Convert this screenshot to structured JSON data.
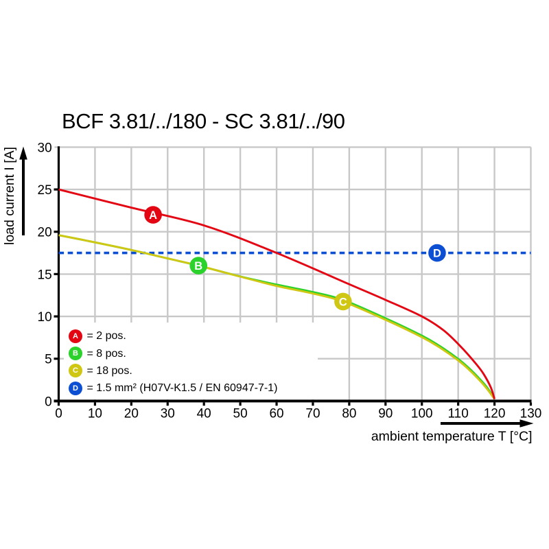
{
  "chart_data": {
    "type": "line",
    "title": "BCF 3.81/../180 - SC 3.81/../90",
    "xlabel": "ambient temperature T [°C]",
    "ylabel": "load current I [A]",
    "xlim": [
      0,
      130
    ],
    "ylim": [
      0,
      30
    ],
    "x_ticks": [
      0,
      10,
      20,
      30,
      40,
      50,
      60,
      70,
      80,
      90,
      100,
      110,
      120,
      130
    ],
    "y_ticks": [
      0,
      5,
      10,
      15,
      20,
      25,
      30
    ],
    "grid": true,
    "legend_position": "lower-left",
    "colors": {
      "axis": "#000000",
      "grid": "#c8c8c8",
      "text": "#000000",
      "background": "#ffffff",
      "series_a_red": "#e30613",
      "series_b_green": "#2bd22b",
      "series_c_yellow": "#cfc713",
      "series_d_blue": "#0d4fd2"
    },
    "series": [
      {
        "id": "D",
        "legend_label": "= 1.5 mm² (H07V-K1.5 / EN 60947-7-1)",
        "color": "#0d4fd2",
        "style": "dashed",
        "marker": {
          "letter": "D",
          "x": 104.2,
          "y": 17.5
        },
        "points": [
          [
            0,
            17.5
          ],
          [
            130,
            17.5
          ]
        ]
      },
      {
        "id": "B",
        "legend_label": "= 8 pos.",
        "color": "#2bd22b",
        "style": "solid",
        "marker": {
          "letter": "B",
          "x": 38.5,
          "y": 16
        },
        "points": [
          [
            0,
            19.6
          ],
          [
            10,
            18.75
          ],
          [
            20,
            17.85
          ],
          [
            30,
            16.85
          ],
          [
            38.5,
            16.0
          ],
          [
            50,
            14.72
          ],
          [
            60,
            13.76
          ],
          [
            70,
            12.88
          ],
          [
            78.3,
            11.95
          ],
          [
            90,
            9.78
          ],
          [
            100,
            7.73
          ],
          [
            105,
            6.48
          ],
          [
            110,
            4.98
          ],
          [
            113,
            3.88
          ],
          [
            116,
            2.58
          ],
          [
            118,
            1.58
          ],
          [
            120,
            0
          ]
        ]
      },
      {
        "id": "C",
        "legend_label": "= 18 pos.",
        "color": "#cfc713",
        "style": "solid",
        "marker": {
          "letter": "C",
          "x": 78.3,
          "y": 11.75
        },
        "points": [
          [
            0,
            19.6
          ],
          [
            10,
            18.75
          ],
          [
            20,
            17.85
          ],
          [
            30,
            16.85
          ],
          [
            38.5,
            16.0
          ],
          [
            50,
            14.7
          ],
          [
            60,
            13.6
          ],
          [
            70,
            12.7
          ],
          [
            78.3,
            11.75
          ],
          [
            90,
            9.6
          ],
          [
            100,
            7.55
          ],
          [
            105,
            6.3
          ],
          [
            110,
            4.8
          ],
          [
            113,
            3.7
          ],
          [
            116,
            2.4
          ],
          [
            118,
            1.4
          ],
          [
            120,
            0
          ]
        ]
      },
      {
        "id": "A",
        "legend_label": "= 2 pos.",
        "color": "#e30613",
        "style": "solid",
        "marker": {
          "letter": "A",
          "x": 26,
          "y": 22
        },
        "points": [
          [
            0,
            25
          ],
          [
            20,
            22.85
          ],
          [
            40,
            20.75
          ],
          [
            60,
            17.5
          ],
          [
            80,
            13.8
          ],
          [
            90,
            11.95
          ],
          [
            100,
            10.0
          ],
          [
            106,
            8.35
          ],
          [
            111,
            6.3
          ],
          [
            115,
            4.35
          ],
          [
            117,
            3.2
          ],
          [
            119,
            1.6
          ],
          [
            120,
            0
          ]
        ]
      }
    ],
    "legend_order": [
      "A",
      "B",
      "C",
      "D"
    ]
  }
}
